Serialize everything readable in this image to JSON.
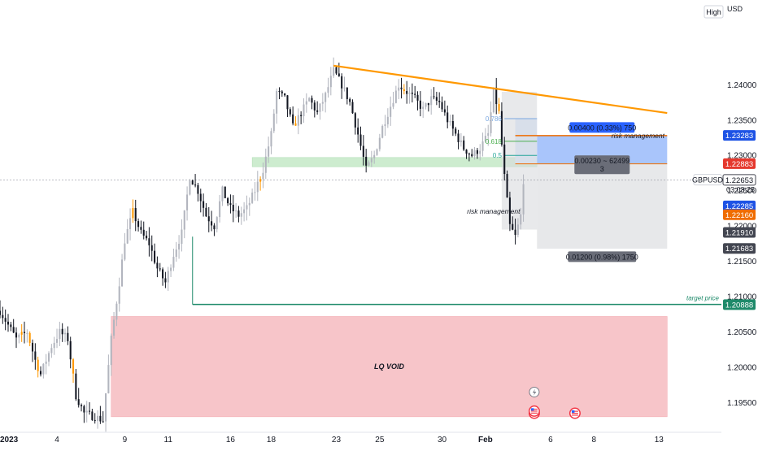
{
  "chart_data": {
    "type": "candlestick",
    "symbol": "GBPUSD",
    "currency": "USD",
    "scale_mode": "High",
    "y_ticks": [
      1.24,
      1.235,
      1.23,
      1.225,
      1.22,
      1.215,
      1.21,
      1.205,
      1.2,
      1.195
    ],
    "y_tick_labels": [
      "1.24000",
      "1.23500",
      "1.23000",
      "1.22500",
      "1.22000",
      "1.21500",
      "1.21000",
      "1.20500",
      "1.20000",
      "1.19500"
    ],
    "ylim": [
      1.1908,
      1.252
    ],
    "x_ticks": [
      {
        "label": "2023",
        "bar": 0
      },
      {
        "label": "4",
        "bar": 21
      },
      {
        "label": "9",
        "bar": 46
      },
      {
        "label": "11",
        "bar": 62
      },
      {
        "label": "16",
        "bar": 85
      },
      {
        "label": "18",
        "bar": 100
      },
      {
        "label": "23",
        "bar": 124
      },
      {
        "label": "25",
        "bar": 140
      },
      {
        "label": "30",
        "bar": 163
      },
      {
        "label": "Feb",
        "bar": 179
      },
      {
        "label": "6",
        "bar": 203
      },
      {
        "label": "8",
        "bar": 219
      },
      {
        "label": "13",
        "bar": 243
      }
    ],
    "xlim": [
      0,
      266
    ],
    "candle_colors": {
      "up": "#b2b5be",
      "down": "#131722",
      "highlight": "#ff9800"
    },
    "anchors": [
      {
        "bar": 0,
        "price": 1.208
      },
      {
        "bar": 3,
        "price": 1.206
      },
      {
        "bar": 6,
        "price": 1.204
      },
      {
        "bar": 10,
        "price": 1.205
      },
      {
        "bar": 13,
        "price": 1.201
      },
      {
        "bar": 15,
        "price": 1.199
      },
      {
        "bar": 19,
        "price": 1.203
      },
      {
        "bar": 22,
        "price": 1.205
      },
      {
        "bar": 25,
        "price": 1.204
      },
      {
        "bar": 28,
        "price": 1.196
      },
      {
        "bar": 31,
        "price": 1.1935
      },
      {
        "bar": 35,
        "price": 1.193
      },
      {
        "bar": 38,
        "price": 1.1925
      },
      {
        "bar": 41,
        "price": 1.204
      },
      {
        "bar": 44,
        "price": 1.212
      },
      {
        "bar": 46,
        "price": 1.218
      },
      {
        "bar": 49,
        "price": 1.222
      },
      {
        "bar": 52,
        "price": 1.219
      },
      {
        "bar": 55,
        "price": 1.2175
      },
      {
        "bar": 58,
        "price": 1.214
      },
      {
        "bar": 61,
        "price": 1.212
      },
      {
        "bar": 64,
        "price": 1.216
      },
      {
        "bar": 67,
        "price": 1.219
      },
      {
        "bar": 70,
        "price": 1.227
      },
      {
        "bar": 73,
        "price": 1.225
      },
      {
        "bar": 76,
        "price": 1.2215
      },
      {
        "bar": 79,
        "price": 1.22
      },
      {
        "bar": 82,
        "price": 1.225
      },
      {
        "bar": 85,
        "price": 1.2225
      },
      {
        "bar": 88,
        "price": 1.2215
      },
      {
        "bar": 91,
        "price": 1.2225
      },
      {
        "bar": 94,
        "price": 1.225
      },
      {
        "bar": 97,
        "price": 1.228
      },
      {
        "bar": 100,
        "price": 1.233
      },
      {
        "bar": 102,
        "price": 1.239
      },
      {
        "bar": 105,
        "price": 1.238
      },
      {
        "bar": 108,
        "price": 1.234
      },
      {
        "bar": 111,
        "price": 1.236
      },
      {
        "bar": 114,
        "price": 1.238
      },
      {
        "bar": 117,
        "price": 1.236
      },
      {
        "bar": 120,
        "price": 1.2385
      },
      {
        "bar": 123,
        "price": 1.242
      },
      {
        "bar": 126,
        "price": 1.24
      },
      {
        "bar": 129,
        "price": 1.2375
      },
      {
        "bar": 132,
        "price": 1.233
      },
      {
        "bar": 135,
        "price": 1.228
      },
      {
        "bar": 138,
        "price": 1.23
      },
      {
        "bar": 141,
        "price": 1.234
      },
      {
        "bar": 144,
        "price": 1.237
      },
      {
        "bar": 147,
        "price": 1.24
      },
      {
        "bar": 150,
        "price": 1.239
      },
      {
        "bar": 153,
        "price": 1.238
      },
      {
        "bar": 156,
        "price": 1.2365
      },
      {
        "bar": 159,
        "price": 1.238
      },
      {
        "bar": 162,
        "price": 1.2375
      },
      {
        "bar": 165,
        "price": 1.235
      },
      {
        "bar": 168,
        "price": 1.233
      },
      {
        "bar": 171,
        "price": 1.231
      },
      {
        "bar": 174,
        "price": 1.23
      },
      {
        "bar": 177,
        "price": 1.231
      },
      {
        "bar": 180,
        "price": 1.233
      },
      {
        "bar": 182,
        "price": 1.239
      },
      {
        "bar": 184,
        "price": 1.236
      },
      {
        "bar": 186,
        "price": 1.227
      },
      {
        "bar": 188,
        "price": 1.22
      },
      {
        "bar": 190,
        "price": 1.2185
      },
      {
        "bar": 192,
        "price": 1.2215
      },
      {
        "bar": 193,
        "price": 1.2265
      }
    ],
    "highlight_bars": [
      8,
      11,
      14,
      27,
      49,
      96,
      109,
      149,
      184
    ],
    "annotations": {
      "lq_void_label": "LQ VOID",
      "risk_management_upper": "risk management",
      "risk_management_lower": "risk management",
      "target_price": "target price",
      "fib_labels": [
        "0.786",
        "0.618",
        "0.5"
      ],
      "long_info": "0.00400 (0.33%) 750",
      "mid_info": "0.00230 ~ 62499",
      "mid_info_sub": "3",
      "short_info": "0.01200 (0.98%) 1750",
      "countdown": "03:03:25"
    },
    "zones": {
      "supply_zone": [
        1.2284,
        1.2297
      ],
      "lq_void": [
        1.193,
        1.2072
      ],
      "target_price": 1.2089,
      "resistance_line": {
        "start_bar": 123,
        "start_price": 1.2427,
        "end_bar": 246,
        "end_price": 1.236
      },
      "stop_line": 1.2328,
      "position_long": [
        1.2288,
        1.2328
      ],
      "position_short": [
        1.2168,
        1.2288
      ],
      "dashed_level": 1.2265
    },
    "price_labels": [
      {
        "price": 1.23283,
        "text": "1.23283",
        "bg": "#1e53e5",
        "fg": "#ffffff"
      },
      {
        "price": 1.22883,
        "text": "1.22883",
        "bg": "#e5382d",
        "fg": "#ffffff"
      },
      {
        "price": 1.22653,
        "text": "1.22653",
        "bg": "#ffffff",
        "fg": "#131722",
        "border": "#434651"
      },
      {
        "price": 1.22285,
        "text": "1.22285",
        "bg": "#1e53e5",
        "fg": "#ffffff"
      },
      {
        "price": 1.2216,
        "text": "1.22160",
        "bg": "#ef6c00",
        "fg": "#ffffff"
      },
      {
        "price": 1.2191,
        "text": "1.21910",
        "bg": "#434651",
        "fg": "#ffffff"
      },
      {
        "price": 1.21683,
        "text": "1.21683",
        "bg": "#434651",
        "fg": "#ffffff"
      },
      {
        "price": 1.20888,
        "text": "1.20888",
        "bg": "#1e8a6a",
        "fg": "#ffffff"
      }
    ]
  }
}
